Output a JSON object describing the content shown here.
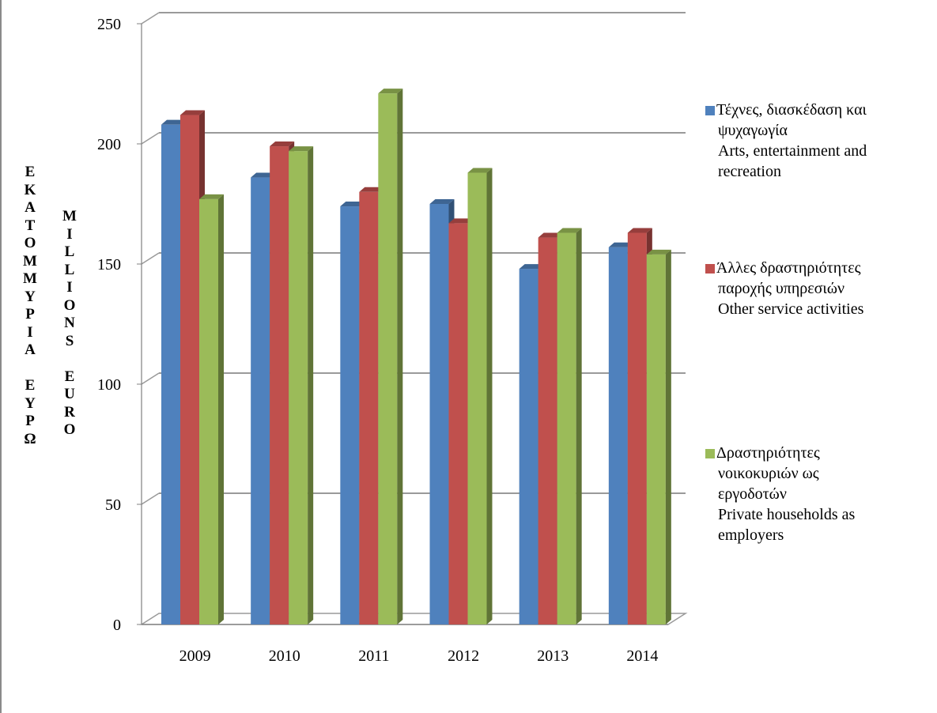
{
  "chart_data": {
    "type": "bar",
    "categories": [
      "2009",
      "2010",
      "2011",
      "2012",
      "2013",
      "2014"
    ],
    "series": [
      {
        "name": "Τέχνες, διασκέδαση και ψυχαγωγία Arts, entertainment and recreation",
        "color": "#4F81BD",
        "values": [
          208,
          186,
          174,
          175,
          148,
          157
        ]
      },
      {
        "name": "Άλλες δραστηριότητες παροχής υπηρεσιών Other service activities",
        "color": "#C0504D",
        "values": [
          212,
          199,
          180,
          167,
          161,
          163
        ]
      },
      {
        "name": "Δραστηριότητες νοικοκυριών ως εργοδοτών Private households as employers",
        "color": "#9BBB59",
        "values": [
          177,
          197,
          221,
          188,
          163,
          154
        ]
      }
    ],
    "ylim": [
      0,
      250
    ],
    "yticks": [
      "0",
      "50",
      "100",
      "150",
      "200",
      "250"
    ],
    "ylabel_gr": "ΕΚΑΤΟΜΜΥΡΙΑ ΕΥΡΩ",
    "ylabel_en": "MILLIONS EURO",
    "grid": true,
    "legend_position": "right"
  },
  "legend": [
    {
      "line1": "Τέχνες, διασκέδαση και",
      "line2": "ψυχαγωγία",
      "line3": "Arts, entertainment  and",
      "line4": "recreation"
    },
    {
      "line1": "Άλλες δραστηριότητες",
      "line2": "παροχής υπηρεσιών",
      "line3": "Other service activities"
    },
    {
      "line1": "Δραστηριότητες",
      "line2": "νοικοκυριών ως",
      "line3": "εργοδοτών",
      "line4": "Private households as",
      "line5": "employers"
    }
  ]
}
